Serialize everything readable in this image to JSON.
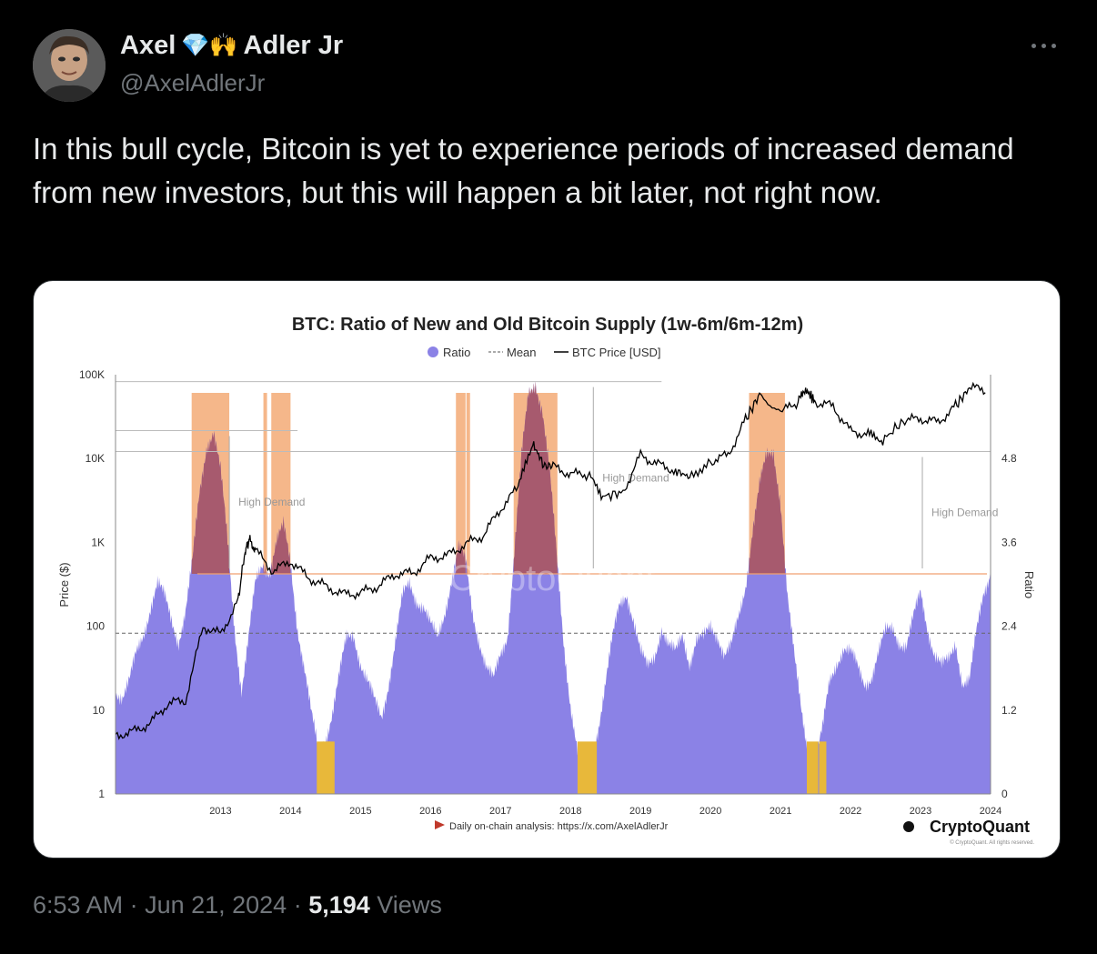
{
  "author": {
    "display_name_first": "Axel",
    "display_name_emojis": "💎🙌",
    "display_name_last": "Adler Jr",
    "handle": "@AxelAdlerJr"
  },
  "tweet": {
    "text": "In this bull cycle, Bitcoin is yet to experience periods of increased demand from new investors, but this will happen a bit later, not right now."
  },
  "meta": {
    "time": "6:53 AM",
    "sep1": " · ",
    "date": "Jun 21, 2024",
    "sep2": " · ",
    "views_count": "5,194",
    "views_label": " Views"
  },
  "icons": {
    "more": "more-horizontal-icon",
    "avatar": "user-avatar"
  },
  "colors": {
    "background": "#000000",
    "ratio_fill": "#8b82e6",
    "high_demand_band": "#f5b78a",
    "low_band": "#e8b83a",
    "price_line": "#000000",
    "threshold_line": "#f0a070"
  },
  "chart_data": {
    "type": "area",
    "title": "BTC: Ratio of New and Old Bitcoin Supply (1w-6m/6m-12m)",
    "legend": [
      "Ratio",
      "Mean",
      "BTC Price [USD]"
    ],
    "legend_position": "top-center",
    "ylabel_left": "Price ($)",
    "ylabel_right": "Ratio",
    "yscale_left": "log",
    "ylim_left": [
      1,
      100000
    ],
    "left_ticks": [
      "1",
      "10",
      "100",
      "1K",
      "10K",
      "100K"
    ],
    "right_ticks": [
      "0",
      "1.2",
      "2.4",
      "3.6",
      "4.8"
    ],
    "ylim_right": [
      0,
      6.0
    ],
    "x_ticks": [
      "2013",
      "2014",
      "2015",
      "2016",
      "2017",
      "2018",
      "2019",
      "2020",
      "2021",
      "2022",
      "2023",
      "2024"
    ],
    "xlim": [
      2012.0,
      2024.5
    ],
    "mean_ratio": 2.3,
    "high_demand_threshold": 3.15,
    "annotations": [
      "High Demand",
      "High Demand",
      "High Demand"
    ],
    "watermark": "CryptoQuant",
    "footer_note": "Daily on-chain analysis: https://x.com/AxelAdlerJr",
    "brand": "CryptoQuant",
    "copyright": "© CryptoQuant. All rights reserved.",
    "series": [
      {
        "name": "Ratio",
        "x": [
          2012.0,
          2012.1,
          2012.2,
          2012.3,
          2012.4,
          2012.5,
          2012.6,
          2012.7,
          2012.8,
          2012.9,
          2013.0,
          2013.1,
          2013.2,
          2013.3,
          2013.4,
          2013.5,
          2013.6,
          2013.7,
          2013.8,
          2013.9,
          2014.0,
          2014.1,
          2014.2,
          2014.3,
          2014.4,
          2014.5,
          2014.6,
          2014.7,
          2014.8,
          2014.9,
          2015.0,
          2015.1,
          2015.2,
          2015.3,
          2015.4,
          2015.5,
          2015.6,
          2015.7,
          2015.8,
          2015.9,
          2016.0,
          2016.1,
          2016.2,
          2016.3,
          2016.4,
          2016.5,
          2016.6,
          2016.7,
          2016.8,
          2016.9,
          2017.0,
          2017.1,
          2017.2,
          2017.3,
          2017.4,
          2017.5,
          2017.6,
          2017.7,
          2017.8,
          2017.9,
          2018.0,
          2018.1,
          2018.2,
          2018.3,
          2018.4,
          2018.5,
          2018.6,
          2018.7,
          2018.8,
          2018.9,
          2019.0,
          2019.1,
          2019.2,
          2019.3,
          2019.4,
          2019.5,
          2019.6,
          2019.7,
          2019.8,
          2019.9,
          2020.0,
          2020.1,
          2020.2,
          2020.3,
          2020.4,
          2020.5,
          2020.6,
          2020.7,
          2020.8,
          2020.9,
          2021.0,
          2021.1,
          2021.2,
          2021.3,
          2021.4,
          2021.5,
          2021.6,
          2021.7,
          2021.8,
          2021.9,
          2022.0,
          2022.1,
          2022.2,
          2022.3,
          2022.4,
          2022.5,
          2022.6,
          2022.7,
          2022.8,
          2022.9,
          2023.0,
          2023.1,
          2023.2,
          2023.3,
          2023.4,
          2023.5,
          2023.6,
          2023.7,
          2023.8,
          2023.9,
          2024.0,
          2024.1,
          2024.2,
          2024.3,
          2024.4,
          2024.5
        ],
        "values": [
          1.5,
          1.4,
          1.6,
          2.0,
          2.3,
          2.7,
          3.0,
          2.8,
          2.5,
          2.2,
          2.6,
          3.3,
          4.3,
          5.0,
          5.2,
          4.6,
          3.6,
          2.4,
          1.5,
          2.2,
          3.0,
          3.3,
          3.2,
          3.6,
          3.8,
          3.3,
          2.4,
          1.8,
          1.1,
          0.6,
          0.8,
          1.2,
          1.7,
          2.2,
          2.3,
          1.9,
          1.6,
          1.3,
          1.1,
          1.6,
          2.2,
          2.8,
          3.0,
          2.8,
          2.7,
          2.4,
          2.2,
          2.6,
          3.1,
          3.5,
          3.3,
          2.6,
          2.2,
          1.8,
          1.6,
          2.0,
          2.3,
          3.5,
          4.8,
          5.7,
          5.9,
          5.5,
          4.6,
          3.4,
          2.2,
          1.3,
          0.6,
          0.4,
          0.5,
          1.0,
          1.6,
          2.2,
          2.7,
          2.9,
          2.5,
          2.0,
          1.8,
          2.0,
          2.4,
          2.1,
          2.0,
          2.3,
          1.9,
          2.2,
          2.2,
          2.4,
          2.3,
          2.0,
          2.1,
          2.5,
          3.0,
          3.8,
          4.4,
          4.8,
          4.9,
          4.2,
          2.8,
          1.9,
          1.2,
          0.6,
          0.5,
          0.9,
          1.6,
          1.9,
          2.1,
          2.0,
          1.8,
          1.6,
          1.7,
          2.0,
          2.3,
          2.4,
          2.2,
          2.1,
          2.5,
          2.9,
          2.4,
          2.0,
          1.8,
          1.9,
          2.2,
          1.6,
          1.6,
          2.3,
          2.9,
          3.2
        ]
      },
      {
        "name": "BTC Price [USD]",
        "x": [
          2012.0,
          2012.25,
          2012.5,
          2012.75,
          2013.0,
          2013.25,
          2013.5,
          2013.75,
          2013.85,
          2013.92,
          2014.0,
          2014.25,
          2014.5,
          2014.75,
          2015.0,
          2015.25,
          2015.5,
          2015.75,
          2016.0,
          2016.25,
          2016.5,
          2016.75,
          2017.0,
          2017.25,
          2017.5,
          2017.75,
          2017.96,
          2018.1,
          2018.25,
          2018.5,
          2018.75,
          2018.96,
          2019.25,
          2019.5,
          2019.75,
          2020.0,
          2020.2,
          2020.5,
          2020.75,
          2021.0,
          2021.2,
          2021.5,
          2021.75,
          2021.87,
          2022.0,
          2022.25,
          2022.5,
          2022.75,
          2022.96,
          2023.25,
          2023.5,
          2023.75,
          2024.0,
          2024.2,
          2024.45
        ],
        "values": [
          5,
          5.5,
          7,
          12,
          13,
          100,
          80,
          200,
          800,
          1100,
          800,
          450,
          600,
          380,
          300,
          240,
          250,
          300,
          420,
          430,
          650,
          700,
          950,
          1200,
          2500,
          4500,
          15000,
          9000,
          8000,
          6500,
          6500,
          3500,
          4000,
          11000,
          8500,
          7200,
          6000,
          9200,
          11000,
          29000,
          58000,
          35000,
          48000,
          65000,
          47000,
          42000,
          21000,
          19500,
          16500,
          28000,
          30000,
          27000,
          42000,
          70000,
          65000
        ]
      }
    ]
  }
}
